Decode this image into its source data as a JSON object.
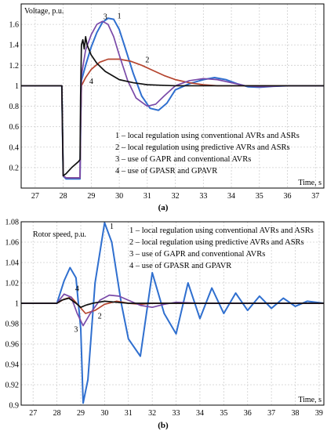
{
  "chart_data": [
    {
      "type": "line",
      "ylabel": "Voltage, p.u.",
      "xlabel": "Time, s",
      "xlim": [
        26.5,
        37.3
      ],
      "ylim": [
        0.0,
        1.8
      ],
      "xticks": [
        27,
        28,
        29,
        30,
        31,
        32,
        33,
        34,
        35,
        36,
        37
      ],
      "yticks": [
        0.2,
        0.4,
        0.6,
        0.8,
        1,
        1.2,
        1.4,
        1.6
      ],
      "grid": true,
      "caption": "(a)",
      "legend": [
        "1 – local regulation using conventional AVRs and ASRs",
        "2 – local regulation using predictive AVRs and ASRs",
        "3 – use of GAPR and conventional AVRs",
        "4 – use of GPASR and GPAVR"
      ],
      "series_labels": [
        {
          "text": "1",
          "x": 30.0,
          "y": 1.66
        },
        {
          "text": "2",
          "x": 31.0,
          "y": 1.23
        },
        {
          "text": "3",
          "x": 29.5,
          "y": 1.65
        },
        {
          "text": "4",
          "x": 29.0,
          "y": 1.02
        }
      ],
      "series": [
        {
          "color": "#2f6fcf",
          "x": [
            26.5,
            27.95,
            28.0,
            28.1,
            28.6,
            28.62,
            28.65,
            28.8,
            29.0,
            29.2,
            29.4,
            29.6,
            29.8,
            30.0,
            30.2,
            30.5,
            30.8,
            31.1,
            31.4,
            31.7,
            32.0,
            32.5,
            33.0,
            33.4,
            33.8,
            34.2,
            34.6,
            35.0,
            35.5,
            36.0,
            37.3
          ],
          "y": [
            1.0,
            1.0,
            0.12,
            0.09,
            0.09,
            0.6,
            1.05,
            1.2,
            1.38,
            1.52,
            1.62,
            1.66,
            1.65,
            1.55,
            1.38,
            1.12,
            0.9,
            0.78,
            0.76,
            0.83,
            0.96,
            1.02,
            1.06,
            1.08,
            1.06,
            1.02,
            0.99,
            0.985,
            0.995,
            1.0,
            1.0
          ]
        },
        {
          "color": "#b5452f",
          "x": [
            26.5,
            27.95,
            28.0,
            28.1,
            28.6,
            28.62,
            28.65,
            28.8,
            29.0,
            29.3,
            29.6,
            30.0,
            30.4,
            30.8,
            31.2,
            31.6,
            32.0,
            32.5,
            33.0,
            33.5,
            34.0,
            35.0,
            37.3
          ],
          "y": [
            1.0,
            1.0,
            0.12,
            0.1,
            0.1,
            0.6,
            1.0,
            1.08,
            1.16,
            1.23,
            1.26,
            1.26,
            1.24,
            1.2,
            1.15,
            1.1,
            1.06,
            1.03,
            1.01,
            1.0,
            1.0,
            1.0,
            1.0
          ]
        },
        {
          "color": "#7a4aa8",
          "x": [
            26.5,
            27.95,
            28.0,
            28.1,
            28.6,
            28.62,
            28.65,
            28.8,
            29.0,
            29.2,
            29.4,
            29.6,
            29.8,
            30.0,
            30.3,
            30.6,
            31.0,
            31.3,
            31.6,
            32.0,
            32.5,
            33.0,
            33.5,
            34.0,
            34.5,
            35.0,
            36.0,
            37.3
          ],
          "y": [
            1.0,
            1.0,
            0.12,
            0.1,
            0.1,
            0.6,
            1.1,
            1.35,
            1.5,
            1.6,
            1.63,
            1.6,
            1.48,
            1.3,
            1.05,
            0.88,
            0.8,
            0.82,
            0.9,
            1.0,
            1.05,
            1.07,
            1.06,
            1.03,
            1.0,
            0.99,
            1.0,
            1.0
          ]
        },
        {
          "color": "#111111",
          "x": [
            26.5,
            27.95,
            28.0,
            28.1,
            28.3,
            28.55,
            28.6,
            28.62,
            28.65,
            28.7,
            28.75,
            28.8,
            28.85,
            29.0,
            29.2,
            29.5,
            30.0,
            30.5,
            31.0,
            31.5,
            32.0,
            33.0,
            34.0,
            37.3
          ],
          "y": [
            1.0,
            1.0,
            0.12,
            0.14,
            0.2,
            0.26,
            0.28,
            0.9,
            1.4,
            1.45,
            1.36,
            1.48,
            1.4,
            1.3,
            1.22,
            1.14,
            1.06,
            1.03,
            1.01,
            1.005,
            1.0,
            1.0,
            1.0,
            1.0
          ]
        }
      ]
    },
    {
      "type": "line",
      "ylabel": "Rotor speed, p.u.",
      "xlabel": "Time, s",
      "xlim": [
        26.5,
        39.2
      ],
      "ylim": [
        0.9,
        1.08
      ],
      "xticks": [
        27,
        28,
        29,
        30,
        31,
        32,
        33,
        34,
        35,
        36,
        37,
        38,
        39
      ],
      "yticks": [
        0.9,
        0.92,
        0.94,
        0.96,
        0.98,
        1,
        1.02,
        1.04,
        1.06,
        1.08
      ],
      "grid": true,
      "caption": "(b)",
      "legend": [
        "1 – local regulation using conventional AVRs and ASRs",
        "2 – local regulation using predictive AVRs and ASRs",
        "3 – use of GAPR and conventional AVRs",
        "4 – use of GPASR and GPAVR"
      ],
      "series_labels": [
        {
          "text": "1",
          "x": 30.3,
          "y": 1.073
        },
        {
          "text": "2",
          "x": 29.8,
          "y": 0.985
        },
        {
          "text": "3",
          "x": 28.8,
          "y": 0.972
        },
        {
          "text": "4",
          "x": 28.85,
          "y": 1.012
        }
      ],
      "series": [
        {
          "color": "#2f6fcf",
          "x": [
            26.5,
            28.0,
            28.3,
            28.55,
            28.8,
            29.0,
            29.1,
            29.3,
            29.6,
            30.0,
            30.3,
            30.7,
            31.0,
            31.5,
            32.0,
            32.5,
            33.0,
            33.5,
            34.0,
            34.5,
            35.0,
            35.5,
            36.0,
            36.5,
            37.0,
            37.5,
            38.0,
            38.5,
            39.2
          ],
          "y": [
            1.0,
            1.0,
            1.022,
            1.035,
            1.025,
            0.975,
            0.902,
            0.925,
            1.02,
            1.079,
            1.06,
            1.0,
            0.965,
            0.948,
            1.03,
            0.99,
            0.97,
            1.02,
            0.985,
            1.015,
            0.99,
            1.01,
            0.993,
            1.007,
            0.995,
            1.005,
            0.997,
            1.002,
            1.0
          ]
        },
        {
          "color": "#b5452f",
          "x": [
            26.5,
            28.0,
            28.3,
            28.6,
            28.9,
            29.2,
            29.6,
            30.0,
            30.5,
            31.0,
            31.5,
            32.0,
            33.0,
            39.2
          ],
          "y": [
            1.0,
            1.0,
            1.004,
            1.006,
            0.998,
            0.99,
            0.993,
            0.999,
            1.002,
            1.0,
            0.999,
            1.0,
            1.0,
            1.0
          ]
        },
        {
          "color": "#7a4aa8",
          "x": [
            26.5,
            28.0,
            28.3,
            28.6,
            28.85,
            29.1,
            29.4,
            29.8,
            30.2,
            30.6,
            31.0,
            31.5,
            32.0,
            32.5,
            33.0,
            34.0,
            39.2
          ],
          "y": [
            1.0,
            1.0,
            1.009,
            1.006,
            0.99,
            0.978,
            0.99,
            1.003,
            1.008,
            1.007,
            1.003,
            0.998,
            0.996,
            0.999,
            1.001,
            1.0,
            1.0
          ]
        },
        {
          "color": "#111111",
          "x": [
            26.5,
            28.0,
            28.2,
            28.5,
            28.8,
            29.0,
            29.2,
            29.5,
            30.0,
            30.5,
            31.0,
            39.2
          ],
          "y": [
            1.0,
            1.0,
            1.003,
            1.005,
            1.0,
            0.996,
            0.998,
            1.0,
            1.002,
            1.001,
            1.0,
            1.0
          ]
        }
      ]
    }
  ]
}
